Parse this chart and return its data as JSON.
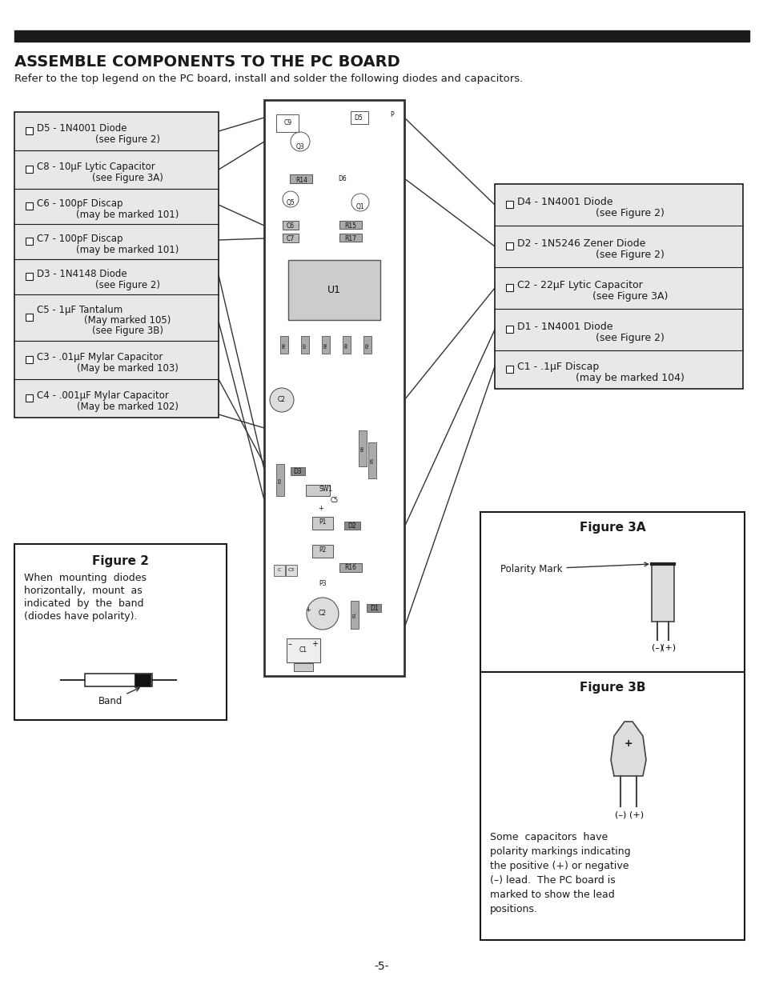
{
  "title": "ASSEMBLE COMPONENTS TO THE PC BOARD",
  "subtitle": "Refer to the top legend on the PC board, install and solder the following diodes and capacitors.",
  "page_num": "-5-",
  "left_items": [
    [
      "D5 - 1N4001 Diode",
      "(see Figure 2)"
    ],
    [
      "C8 - 10μF Lytic Capacitor",
      "(see Figure 3A)"
    ],
    [
      "C6 - 100pF Discap",
      "(may be marked 101)"
    ],
    [
      "C7 - 100pF Discap",
      "(may be marked 101)"
    ],
    [
      "D3 - 1N4148 Diode",
      "(see Figure 2)"
    ],
    [
      "C5 - 1μF Tantalum",
      "(May marked 105)",
      "(see Figure 3B)"
    ],
    [
      "C3 - .01μF Mylar Capacitor",
      "(May be marked 103)"
    ],
    [
      "C4 - .001μF Mylar Capacitor",
      "(May be marked 102)"
    ]
  ],
  "right_items": [
    [
      "D4 - 1N4001 Diode",
      "(see Figure 2)"
    ],
    [
      "D2 - 1N5246 Zener Diode",
      "(see Figure 2)"
    ],
    [
      "C2 - 22μF Lytic Capacitor",
      "(see Figure 3A)"
    ],
    [
      "D1 - 1N4001 Diode",
      "(see Figure 2)"
    ],
    [
      "C1 - .1μF Discap",
      "(may be marked 104)"
    ]
  ],
  "fig2_title": "Figure 2",
  "fig2_lines": [
    "When  mounting  diodes",
    "horizontally,  mount  as",
    "indicated  by  the  band",
    "(diodes have polarity)."
  ],
  "fig2_band_label": "Band",
  "fig3a_title": "Figure 3A",
  "fig3a_polarity_label": "Polarity Mark",
  "fig3a_neg": "(–)",
  "fig3a_pos": "(+)",
  "fig3b_title": "Figure 3B",
  "fig3b_neg": "(–)",
  "fig3b_pos": "(+)",
  "fig3b_lines": [
    "Some  capacitors  have",
    "polarity markings indicating",
    "the positive (+) or negative",
    "(–) lead.  The PC board is",
    "marked to show the lead",
    "positions."
  ],
  "bg_color": "#ffffff",
  "box_bg": "#e8e8e8",
  "box_border": "#1a1a1a",
  "text_color": "#1a1a1a",
  "header_bar_color": "#1a1a1a"
}
